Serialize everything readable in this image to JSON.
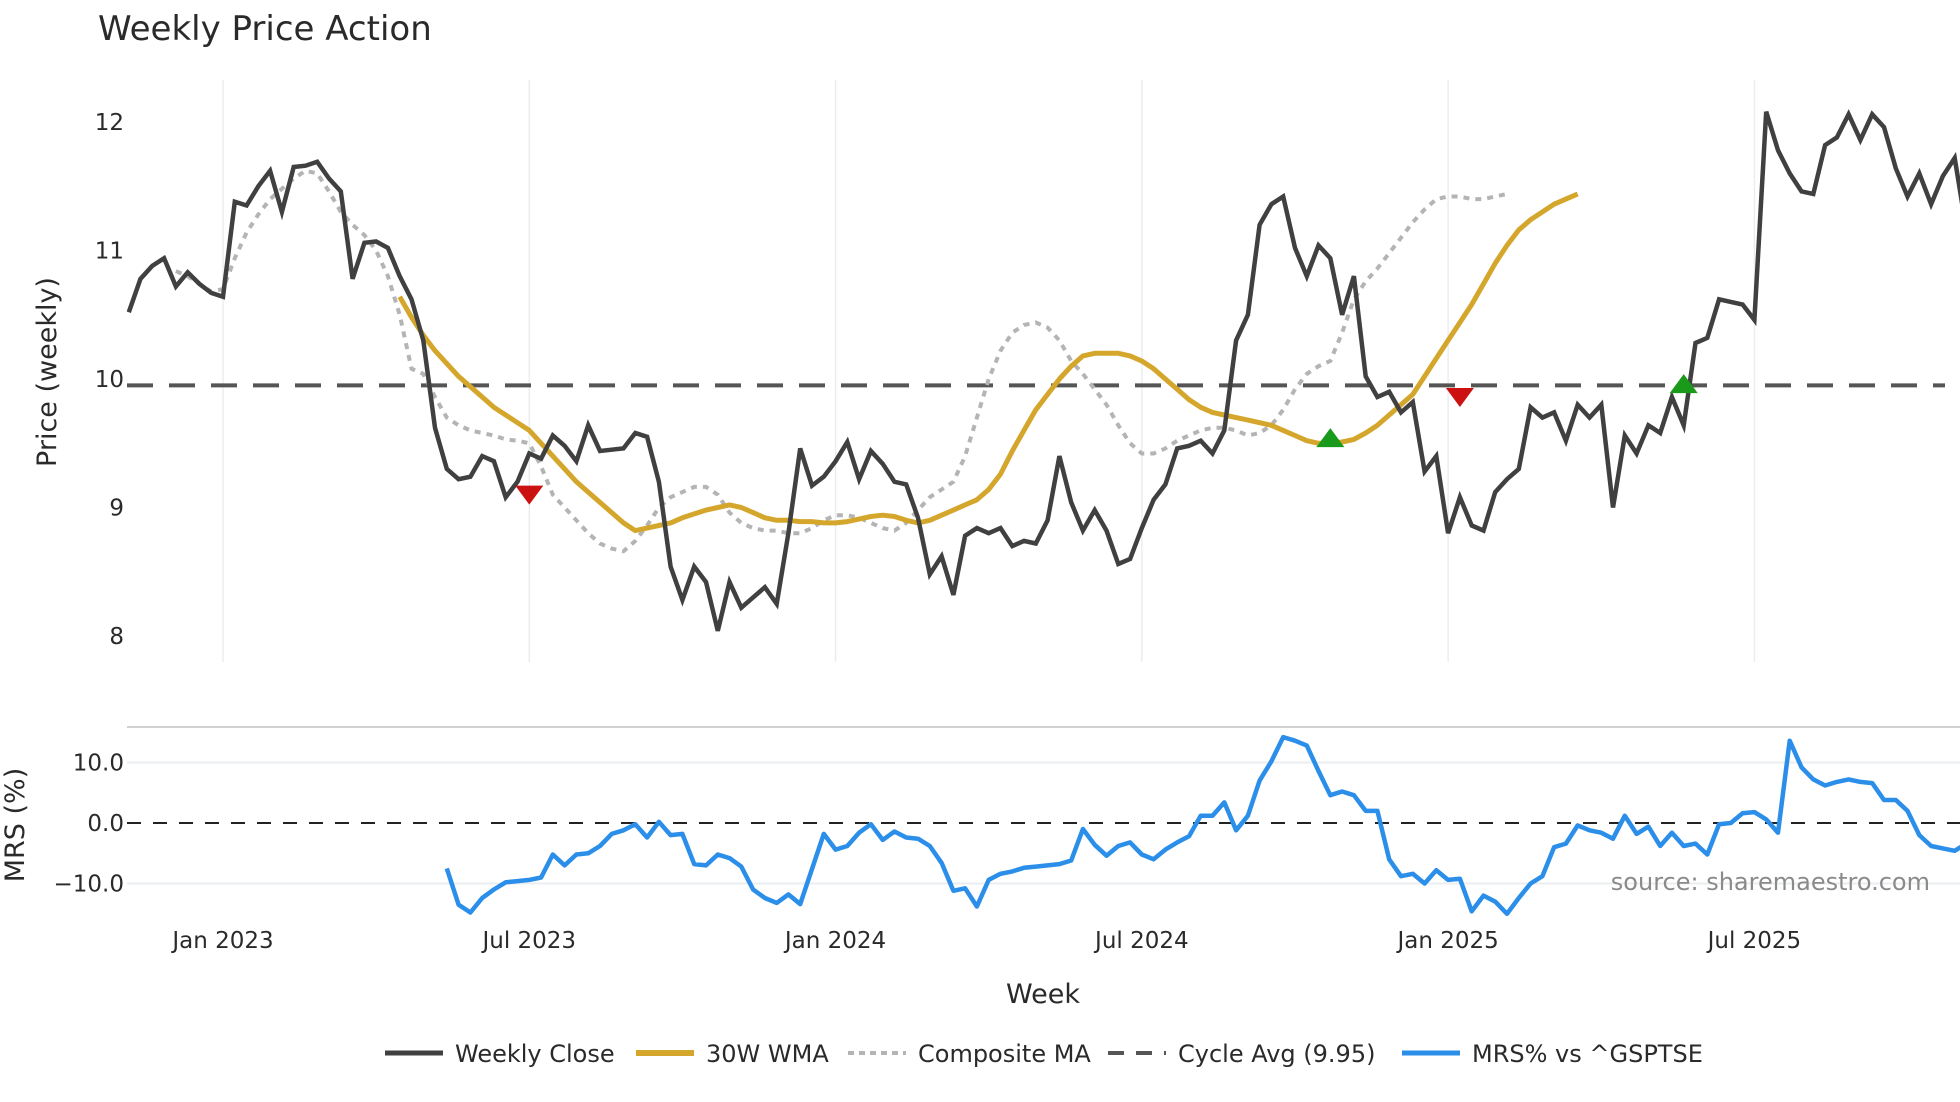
{
  "chart_data": {
    "type": "line",
    "title": "Weekly Price Action",
    "panels": [
      {
        "name": "price",
        "ylabel": "Price (weekly)",
        "ylim": [
          7.85,
          12.3
        ],
        "yticks": [
          8,
          9,
          10,
          11,
          12
        ],
        "grid": {
          "x": true,
          "y": false
        }
      },
      {
        "name": "mrs",
        "ylabel": "MRS (%)",
        "ylim": [
          -16,
          16
        ],
        "yticks": [
          10.0,
          0.0,
          -10.0
        ],
        "ytick_labels": [
          "10.0",
          "0.0",
          "−10.0"
        ],
        "zero_line": 0.0,
        "grid": {
          "x": false,
          "y": true
        }
      }
    ],
    "xlabel": "Week",
    "x_ticks": [
      "Jan 2023",
      "Jul 2023",
      "Jan 2024",
      "Jul 2024",
      "Jan 2025",
      "Jul 2025"
    ],
    "x_start_week_offset": -8,
    "x_note": "x index = weeks relative to first week of Jan 2023",
    "series": [
      {
        "name": "Weekly Close",
        "color": "#404040",
        "panel": "price",
        "start": -8,
        "values": [
          10.52,
          10.78,
          10.88,
          10.94,
          10.72,
          10.83,
          10.74,
          10.67,
          10.64,
          11.38,
          11.35,
          11.5,
          11.62,
          11.3,
          11.65,
          11.66,
          11.69,
          11.56,
          11.46,
          10.78,
          11.06,
          11.07,
          11.02,
          10.8,
          10.62,
          10.3,
          9.62,
          9.3,
          9.22,
          9.24,
          9.4,
          9.36,
          9.08,
          9.2,
          9.42,
          9.38,
          9.56,
          9.48,
          9.36,
          9.64,
          9.44,
          9.45,
          9.46,
          9.58,
          9.55,
          9.2,
          8.54,
          8.28,
          8.54,
          8.42,
          8.04,
          8.42,
          8.22,
          8.3,
          8.38,
          8.25,
          8.8,
          9.46,
          9.17,
          9.24,
          9.36,
          9.51,
          9.22,
          9.44,
          9.34,
          9.2,
          9.18,
          8.92,
          8.48,
          8.62,
          8.32,
          8.78,
          8.84,
          8.8,
          8.84,
          8.7,
          8.74,
          8.72,
          8.9,
          9.4,
          9.04,
          8.82,
          8.98,
          8.82,
          8.56,
          8.6,
          8.84,
          9.06,
          9.18,
          9.46,
          9.48,
          9.52,
          9.42,
          9.6,
          10.3,
          10.5,
          11.2,
          11.36,
          11.42,
          11.02,
          10.8,
          11.04,
          10.94,
          10.5,
          10.8,
          10.02,
          9.86,
          9.9,
          9.74,
          9.82,
          9.28,
          9.4,
          8.8,
          9.08,
          8.86,
          8.82,
          9.12,
          9.22,
          9.3,
          9.78,
          9.7,
          9.74,
          9.52,
          9.8,
          9.7,
          9.8,
          9.0,
          9.56,
          9.42,
          9.64,
          9.58,
          9.86,
          9.64,
          10.28,
          10.32,
          10.62,
          10.6,
          10.58,
          10.46,
          12.08,
          11.78,
          11.6,
          11.46,
          11.44,
          11.82,
          11.88,
          12.06,
          11.86,
          12.06,
          11.96,
          11.64,
          11.42,
          11.6,
          11.36,
          11.58,
          11.72,
          11.16
        ]
      },
      {
        "name": "30W WMA",
        "color": "#D4A72C",
        "panel": "price",
        "start": 15,
        "values": [
          10.64,
          10.48,
          10.34,
          10.22,
          10.12,
          10.02,
          9.94,
          9.86,
          9.78,
          9.72,
          9.66,
          9.6,
          9.5,
          9.4,
          9.3,
          9.2,
          9.12,
          9.04,
          8.96,
          8.88,
          8.82,
          8.84,
          8.86,
          8.88,
          8.92,
          8.95,
          8.98,
          9.0,
          9.02,
          9.0,
          8.96,
          8.92,
          8.9,
          8.9,
          8.89,
          8.89,
          8.88,
          8.88,
          8.89,
          8.91,
          8.93,
          8.94,
          8.93,
          8.9,
          8.88,
          8.9,
          8.94,
          8.98,
          9.02,
          9.06,
          9.14,
          9.26,
          9.44,
          9.6,
          9.76,
          9.88,
          10.0,
          10.1,
          10.18,
          10.2,
          10.2,
          10.2,
          10.18,
          10.14,
          10.08,
          10.0,
          9.92,
          9.84,
          9.78,
          9.74,
          9.72,
          9.7,
          9.68,
          9.66,
          9.64,
          9.6,
          9.56,
          9.52,
          9.5,
          9.5,
          9.51,
          9.53,
          9.58,
          9.64,
          9.72,
          9.8,
          9.88,
          10.02,
          10.16,
          10.3,
          10.44,
          10.58,
          10.74,
          10.9,
          11.04,
          11.16,
          11.24,
          11.3,
          11.36,
          11.4,
          11.44
        ]
      },
      {
        "name": "Composite MA",
        "color": "#B4B4B4",
        "panel": "price",
        "start": -4,
        "values": [
          10.84,
          10.8,
          10.74,
          10.68,
          10.7,
          10.94,
          11.14,
          11.28,
          11.4,
          11.48,
          11.56,
          11.62,
          11.6,
          11.46,
          11.3,
          11.2,
          11.12,
          11.0,
          10.8,
          10.5,
          10.08,
          10.04,
          9.86,
          9.7,
          9.64,
          9.6,
          9.58,
          9.56,
          9.53,
          9.52,
          9.5,
          9.32,
          9.1,
          9.0,
          8.9,
          8.8,
          8.72,
          8.68,
          8.66,
          8.74,
          8.86,
          9.0,
          9.08,
          9.12,
          9.16,
          9.16,
          9.1,
          8.96,
          8.88,
          8.84,
          8.82,
          8.82,
          8.8,
          8.8,
          8.84,
          8.9,
          8.94,
          8.94,
          8.92,
          8.88,
          8.84,
          8.82,
          8.88,
          8.98,
          9.08,
          9.14,
          9.2,
          9.4,
          9.7,
          10.0,
          10.22,
          10.36,
          10.42,
          10.44,
          10.4,
          10.3,
          10.14,
          10.04,
          9.92,
          9.8,
          9.64,
          9.5,
          9.42,
          9.42,
          9.46,
          9.52,
          9.56,
          9.6,
          9.62,
          9.62,
          9.6,
          9.56,
          9.58,
          9.64,
          9.76,
          9.92,
          10.04,
          10.1,
          10.14,
          10.36,
          10.62,
          10.76,
          10.86,
          10.98,
          11.1,
          11.22,
          11.32,
          11.4,
          11.42,
          11.42,
          11.4,
          11.4,
          11.42,
          11.44
        ]
      },
      {
        "name": "Cycle Avg (9.95)",
        "color": "#555555",
        "panel": "price",
        "constant": 9.95
      },
      {
        "name": "MRS% vs ^GSPTSE",
        "color": "#2B8FEA",
        "panel": "mrs",
        "start": 19,
        "values": [
          -7.5,
          -13.5,
          -14.8,
          -12.4,
          -11.0,
          -9.8,
          -9.6,
          -9.4,
          -9.0,
          -5.2,
          -7.0,
          -5.2,
          -5.0,
          -3.8,
          -1.8,
          -1.2,
          -0.2,
          -2.4,
          0.2,
          -2.0,
          -1.8,
          -6.8,
          -7.0,
          -5.2,
          -5.8,
          -7.2,
          -11.0,
          -12.4,
          -13.2,
          -11.8,
          -13.4,
          -7.6,
          -1.8,
          -4.4,
          -3.8,
          -1.6,
          -0.2,
          -2.8,
          -1.4,
          -2.4,
          -2.6,
          -3.8,
          -6.6,
          -11.2,
          -10.8,
          -13.8,
          -9.4,
          -8.4,
          -8.0,
          -7.4,
          -7.2,
          -7.0,
          -6.8,
          -6.2,
          -1.0,
          -3.6,
          -5.4,
          -3.8,
          -3.2,
          -5.2,
          -6.0,
          -4.4,
          -3.2,
          -2.2,
          1.2,
          1.2,
          3.4,
          -1.2,
          1.2,
          7.0,
          10.2,
          14.2,
          13.6,
          12.8,
          8.6,
          4.6,
          5.2,
          4.6,
          2.0,
          2.0,
          -6.0,
          -8.8,
          -8.4,
          -10.0,
          -7.8,
          -9.4,
          -9.2,
          -14.6,
          -12.0,
          -13.0,
          -15.0,
          -12.4,
          -10.0,
          -8.8,
          -4.0,
          -3.4,
          -0.4,
          -1.2,
          -1.6,
          -2.6,
          1.2,
          -1.8,
          -0.6,
          -3.8,
          -1.6,
          -3.8,
          -3.4,
          -5.2,
          -0.2,
          0.0,
          1.6,
          1.8,
          0.6,
          -1.6,
          13.6,
          9.2,
          7.2,
          6.2,
          6.8,
          7.2,
          6.8,
          6.6,
          3.8,
          3.8,
          2.0,
          -2.0,
          -3.8,
          -4.2,
          -4.6,
          -3.4,
          -2.8,
          -7.0
        ]
      }
    ],
    "markers": [
      {
        "type": "sell",
        "shape": "triangle-down",
        "color": "#CC1111",
        "week": 26,
        "value": 9.1
      },
      {
        "type": "buy",
        "shape": "triangle-up",
        "color": "#1A9A1A",
        "week": 94,
        "value": 9.54
      },
      {
        "type": "sell",
        "shape": "triangle-down",
        "color": "#CC1111",
        "week": 105,
        "value": 9.86
      },
      {
        "type": "buy",
        "shape": "triangle-up",
        "color": "#1A9A1A",
        "week": 124,
        "value": 9.96
      }
    ],
    "legend": {
      "position": "bottom-center",
      "entries": [
        "Weekly Close",
        "30W WMA",
        "Composite MA",
        "Cycle Avg (9.95)",
        "MRS% vs ^GSPTSE"
      ]
    },
    "annotations": [
      "source: sharemaestro.com"
    ]
  },
  "labels": {
    "title": "Weekly Price Action",
    "price_ylabel": "Price (weekly)",
    "mrs_ylabel": "MRS (%)",
    "xlabel": "Week",
    "watermark": "source: sharemaestro.com"
  }
}
